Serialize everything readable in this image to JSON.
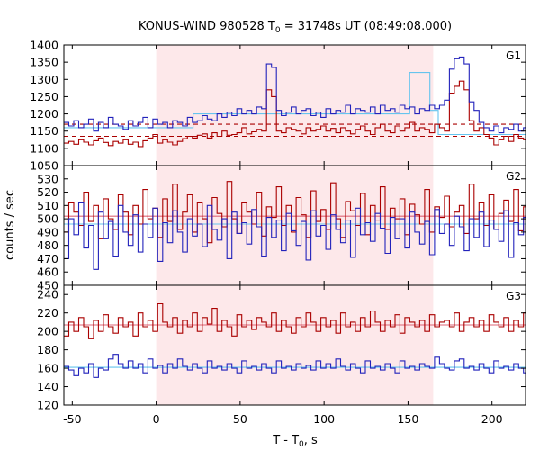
{
  "chart_data": {
    "type": "line",
    "title_main": "KONUS-WIND 980528 T",
    "title_sub": "0",
    "title_rest": " = 31748s UT (08:49:08.000)",
    "xlabel_main": "T - T",
    "xlabel_sub": "0",
    "xlabel_rest": ", s",
    "ylabel": "counts / sec",
    "xlim": [
      -55,
      220
    ],
    "x_ticks": [
      -50,
      0,
      50,
      100,
      150,
      200
    ],
    "highlight_interval": [
      0,
      165
    ],
    "colors": {
      "red": "#aa0000",
      "blue": "#2222bb",
      "cyan": "#66c4ee",
      "pink": "#dd6677",
      "shade": "#fde8ea"
    },
    "bin_width": 2.944,
    "x_start": -55,
    "panels": [
      {
        "name": "G1",
        "ylim": [
          1050,
          1400
        ],
        "y_ticks": [
          1050,
          1100,
          1150,
          1200,
          1250,
          1300,
          1350,
          1400
        ],
        "series": [
          {
            "color": "red",
            "values": [
              1115,
              1120,
              1112,
              1125,
              1118,
              1110,
              1122,
              1130,
              1117,
              1108,
              1120,
              1115,
              1125,
              1112,
              1118,
              1105,
              1122,
              1130,
              1140,
              1115,
              1125,
              1118,
              1110,
              1120,
              1128,
              1135,
              1130,
              1138,
              1142,
              1130,
              1145,
              1135,
              1150,
              1138,
              1140,
              1145,
              1160,
              1142,
              1148,
              1155,
              1150,
              1270,
              1250,
              1150,
              1145,
              1160,
              1155,
              1150,
              1142,
              1160,
              1150,
              1155,
              1165,
              1150,
              1158,
              1145,
              1160,
              1150,
              1142,
              1155,
              1165,
              1150,
              1140,
              1160,
              1170,
              1150,
              1145,
              1165,
              1150,
              1160,
              1175,
              1150,
              1160,
              1155,
              1145,
              1170,
              1160,
              1150,
              1260,
              1280,
              1295,
              1270,
              1180,
              1150,
              1160,
              1140,
              1130,
              1110,
              1125,
              1135,
              1120,
              1140,
              1130,
              1125,
              1110,
              1135
            ]
          },
          {
            "color": "blue",
            "values": [
              1175,
              1165,
              1180,
              1160,
              1170,
              1185,
              1150,
              1175,
              1160,
              1190,
              1170,
              1165,
              1155,
              1180,
              1165,
              1175,
              1190,
              1160,
              1185,
              1170,
              1175,
              1160,
              1180,
              1175,
              1165,
              1190,
              1175,
              1180,
              1195,
              1185,
              1180,
              1200,
              1190,
              1205,
              1195,
              1215,
              1200,
              1210,
              1200,
              1220,
              1215,
              1345,
              1335,
              1210,
              1195,
              1205,
              1220,
              1200,
              1210,
              1215,
              1195,
              1205,
              1190,
              1215,
              1200,
              1210,
              1205,
              1225,
              1200,
              1215,
              1210,
              1205,
              1220,
              1200,
              1225,
              1210,
              1215,
              1205,
              1225,
              1215,
              1220,
              1200,
              1215,
              1210,
              1225,
              1215,
              1225,
              1240,
              1330,
              1360,
              1365,
              1345,
              1235,
              1210,
              1175,
              1160,
              1150,
              1165,
              1145,
              1160,
              1155,
              1170,
              1150,
              1160,
              1145,
              1165
            ]
          }
        ],
        "fit_lines": [
          {
            "color": "cyan",
            "steps": [
              [
                -55,
                1160
              ],
              [
                22,
                1160
              ],
              [
                22,
                1200
              ],
              [
                151,
                1200
              ],
              [
                151,
                1320
              ],
              [
                163,
                1320
              ],
              [
                163,
                1210
              ],
              [
                168,
                1210
              ],
              [
                168,
                1140
              ],
              [
                220,
                1140
              ]
            ]
          },
          {
            "color": "red",
            "dash": true,
            "steps": [
              [
                -55,
                1135
              ],
              [
                220,
                1135
              ]
            ]
          },
          {
            "color": "red",
            "dash": true,
            "steps": [
              [
                -55,
                1170
              ],
              [
                220,
                1170
              ]
            ]
          }
        ]
      },
      {
        "name": "G2",
        "ylim": [
          450,
          540
        ],
        "y_ticks": [
          450,
          460,
          470,
          480,
          490,
          500,
          510,
          520,
          530
        ],
        "series": [
          {
            "color": "red",
            "values": [
              490,
              512,
              505,
              495,
              520,
              498,
              510,
              485,
              515,
              500,
              492,
              518,
              505,
              488,
              510,
              496,
              522,
              500,
              508,
              486,
              515,
              498,
              526,
              492,
              505,
              518,
              490,
              512,
              500,
              482,
              516,
              504,
              494,
              528,
              500,
              489,
              512,
              505,
              496,
              520,
              487,
              509,
              501,
              524,
              495,
              510,
              490,
              516,
              503,
              486,
              521,
              498,
              507,
              492,
              527,
              500,
              486,
              513,
              506,
              495,
              519,
              488,
              510,
              499,
              524,
              492,
              508,
              500,
              515,
              488,
              511,
              503,
              496,
              522,
              490,
              509,
              501,
              517,
              494,
              505,
              510,
              489,
              526,
              500,
              512,
              495,
              518,
              492,
              504,
              514,
              498,
              522,
              491,
              509,
              500,
              516
            ]
          },
          {
            "color": "blue",
            "values": [
              470,
              500,
              488,
              512,
              478,
              495,
              462,
              505,
              485,
              498,
              472,
              510,
              490,
              480,
              503,
              475,
              496,
              486,
              508,
              468,
              497,
              482,
              506,
              490,
              475,
              500,
              487,
              496,
              479,
              510,
              492,
              484,
              500,
              470,
              505,
              489,
              497,
              481,
              507,
              494,
              472,
              501,
              486,
              499,
              476,
              504,
              491,
              480,
              498,
              469,
              506,
              487,
              495,
              477,
              503,
              492,
              482,
              499,
              471,
              508,
              488,
              497,
              483,
              504,
              493,
              474,
              501,
              485,
              500,
              478,
              505,
              490,
              481,
              498,
              473,
              507,
              489,
              496,
              480,
              502,
              494,
              476,
              500,
              486,
              505,
              479,
              499,
              492,
              483,
              506,
              471,
              497,
              488,
              501,
              477,
              499
            ]
          }
        ],
        "fit_lines": [
          {
            "color": "pink",
            "steps": [
              [
                -55,
                502
              ],
              [
                220,
                502
              ]
            ]
          },
          {
            "color": "cyan",
            "steps": [
              [
                -55,
                496
              ],
              [
                220,
                496
              ]
            ]
          }
        ]
      },
      {
        "name": "G3",
        "ylim": [
          120,
          250
        ],
        "y_ticks": [
          120,
          140,
          160,
          180,
          200,
          220,
          240
        ],
        "series": [
          {
            "color": "red",
            "values": [
              195,
              210,
              200,
              215,
              205,
              192,
              212,
              200,
              218,
              205,
              198,
              215,
              205,
              210,
              195,
              220,
              205,
              212,
              200,
              230,
              210,
              205,
              215,
              198,
              212,
              205,
              220,
              200,
              215,
              208,
              225,
              200,
              212,
              205,
              195,
              218,
              205,
              212,
              202,
              215,
              210,
              205,
              220,
              200,
              212,
              205,
              198,
              215,
              205,
              220,
              210,
              200,
              215,
              205,
              212,
              198,
              220,
              205,
              210,
              200,
              215,
              205,
              222,
              210,
              200,
              212,
              205,
              218,
              198,
              215,
              210,
              205,
              212,
              200,
              218,
              205,
              210,
              212,
              205,
              220,
              200,
              210,
              215,
              205,
              212,
              200,
              218,
              210,
              205,
              215,
              200,
              212,
              205,
              220,
              208,
              215
            ]
          },
          {
            "color": "blue",
            "values": [
              162,
              158,
              152,
              160,
              155,
              165,
              150,
              160,
              158,
              170,
              175,
              165,
              160,
              168,
              160,
              165,
              155,
              170,
              160,
              163,
              155,
              165,
              160,
              170,
              162,
              158,
              165,
              160,
              155,
              168,
              160,
              162,
              158,
              165,
              160,
              155,
              168,
              160,
              162,
              158,
              165,
              160,
              155,
              168,
              160,
              162,
              158,
              165,
              160,
              163,
              158,
              168,
              160,
              165,
              160,
              170,
              162,
              158,
              165,
              160,
              155,
              168,
              160,
              162,
              158,
              165,
              160,
              155,
              168,
              160,
              162,
              158,
              165,
              162,
              160,
              172,
              165,
              160,
              158,
              168,
              170,
              160,
              162,
              158,
              165,
              160,
              155,
              168,
              160,
              162,
              158,
              165,
              160,
              155,
              168,
              160
            ]
          }
        ],
        "fit_lines": [
          {
            "color": "pink",
            "steps": [
              [
                -55,
                207
              ],
              [
                220,
                207
              ]
            ]
          },
          {
            "color": "cyan",
            "steps": [
              [
                -55,
                161
              ],
              [
                220,
                161
              ]
            ]
          }
        ]
      }
    ]
  }
}
